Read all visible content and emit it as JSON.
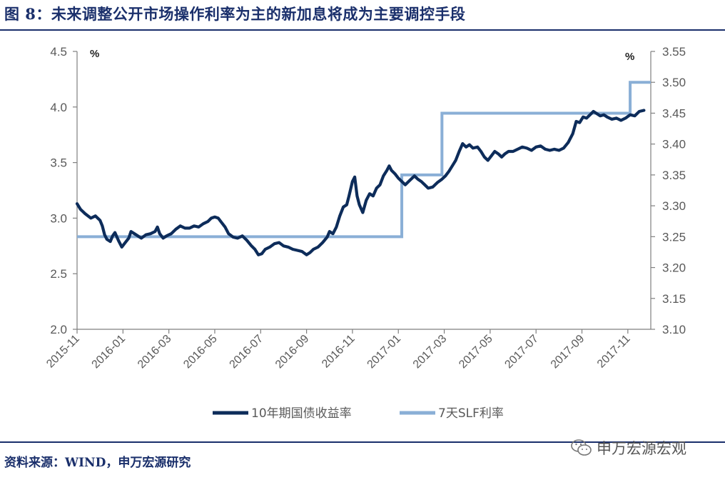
{
  "page": {
    "title": "图 8：未来调整公开市场操作利率为主的新加息将成为主要调控手段",
    "source": "资料来源：WIND，申万宏源研究",
    "watermark": "申万宏源宏观",
    "watermark_icon": "wechat-icon"
  },
  "chart_data": {
    "type": "line",
    "title": "",
    "xlabel": "",
    "left_axis": {
      "unit": "%",
      "ylim": [
        2.0,
        4.5
      ],
      "ticks": [
        "2.0",
        "2.5",
        "3.0",
        "3.5",
        "4.0",
        "4.5"
      ]
    },
    "right_axis": {
      "unit": "%",
      "ylim": [
        3.1,
        3.55
      ],
      "ticks": [
        "3.10",
        "3.15",
        "3.20",
        "3.25",
        "3.30",
        "3.35",
        "3.40",
        "3.45",
        "3.50",
        "3.55"
      ]
    },
    "x_ticks": [
      "2015-11",
      "2016-01",
      "2016-03",
      "2016-05",
      "2016-07",
      "2016-09",
      "2016-11",
      "2017-01",
      "2017-03",
      "2017-05",
      "2017-07",
      "2017-09",
      "2017-11"
    ],
    "x_range_months": [
      0,
      25.0
    ],
    "series": [
      {
        "name": "10年期国债收益率",
        "axis": "left",
        "color": "#0d2c5a",
        "points": [
          [
            0.0,
            3.13
          ],
          [
            0.15,
            3.08
          ],
          [
            0.35,
            3.04
          ],
          [
            0.6,
            3.0
          ],
          [
            0.8,
            3.02
          ],
          [
            1.0,
            2.98
          ],
          [
            1.1,
            2.93
          ],
          [
            1.2,
            2.85
          ],
          [
            1.3,
            2.81
          ],
          [
            1.45,
            2.79
          ],
          [
            1.55,
            2.84
          ],
          [
            1.65,
            2.87
          ],
          [
            1.8,
            2.8
          ],
          [
            1.95,
            2.74
          ],
          [
            2.1,
            2.78
          ],
          [
            2.25,
            2.82
          ],
          [
            2.35,
            2.88
          ],
          [
            2.5,
            2.86
          ],
          [
            2.65,
            2.84
          ],
          [
            2.8,
            2.82
          ],
          [
            3.0,
            2.85
          ],
          [
            3.2,
            2.86
          ],
          [
            3.4,
            2.88
          ],
          [
            3.5,
            2.92
          ],
          [
            3.6,
            2.86
          ],
          [
            3.75,
            2.82
          ],
          [
            3.9,
            2.84
          ],
          [
            4.1,
            2.86
          ],
          [
            4.3,
            2.9
          ],
          [
            4.5,
            2.93
          ],
          [
            4.7,
            2.91
          ],
          [
            4.9,
            2.91
          ],
          [
            5.1,
            2.93
          ],
          [
            5.3,
            2.92
          ],
          [
            5.5,
            2.95
          ],
          [
            5.7,
            2.97
          ],
          [
            5.85,
            3.0
          ],
          [
            6.0,
            3.01
          ],
          [
            6.15,
            3.0
          ],
          [
            6.3,
            2.96
          ],
          [
            6.45,
            2.92
          ],
          [
            6.6,
            2.86
          ],
          [
            6.8,
            2.83
          ],
          [
            7.0,
            2.82
          ],
          [
            7.2,
            2.84
          ],
          [
            7.4,
            2.8
          ],
          [
            7.6,
            2.75
          ],
          [
            7.75,
            2.72
          ],
          [
            7.9,
            2.67
          ],
          [
            8.05,
            2.68
          ],
          [
            8.2,
            2.72
          ],
          [
            8.4,
            2.74
          ],
          [
            8.6,
            2.77
          ],
          [
            8.8,
            2.78
          ],
          [
            9.0,
            2.75
          ],
          [
            9.2,
            2.74
          ],
          [
            9.4,
            2.72
          ],
          [
            9.6,
            2.71
          ],
          [
            9.8,
            2.7
          ],
          [
            10.0,
            2.67
          ],
          [
            10.15,
            2.69
          ],
          [
            10.3,
            2.72
          ],
          [
            10.5,
            2.74
          ],
          [
            10.7,
            2.78
          ],
          [
            10.9,
            2.83
          ],
          [
            11.0,
            2.88
          ],
          [
            11.15,
            2.86
          ],
          [
            11.3,
            2.92
          ],
          [
            11.45,
            3.02
          ],
          [
            11.6,
            3.1
          ],
          [
            11.75,
            3.12
          ],
          [
            11.85,
            3.2
          ],
          [
            12.0,
            3.33
          ],
          [
            12.1,
            3.37
          ],
          [
            12.2,
            3.2
          ],
          [
            12.3,
            3.12
          ],
          [
            12.45,
            3.05
          ],
          [
            12.6,
            3.16
          ],
          [
            12.75,
            3.22
          ],
          [
            12.9,
            3.2
          ],
          [
            13.05,
            3.27
          ],
          [
            13.2,
            3.3
          ],
          [
            13.35,
            3.38
          ],
          [
            13.5,
            3.43
          ],
          [
            13.6,
            3.47
          ],
          [
            13.7,
            3.43
          ],
          [
            13.85,
            3.4
          ],
          [
            14.0,
            3.36
          ],
          [
            14.15,
            3.33
          ],
          [
            14.3,
            3.3
          ],
          [
            14.5,
            3.34
          ],
          [
            14.7,
            3.38
          ],
          [
            14.85,
            3.35
          ],
          [
            15.0,
            3.33
          ],
          [
            15.15,
            3.3
          ],
          [
            15.3,
            3.27
          ],
          [
            15.5,
            3.28
          ],
          [
            15.7,
            3.32
          ],
          [
            15.9,
            3.35
          ],
          [
            16.05,
            3.38
          ],
          [
            16.2,
            3.42
          ],
          [
            16.35,
            3.47
          ],
          [
            16.5,
            3.52
          ],
          [
            16.65,
            3.6
          ],
          [
            16.8,
            3.67
          ],
          [
            16.95,
            3.64
          ],
          [
            17.1,
            3.66
          ],
          [
            17.25,
            3.63
          ],
          [
            17.45,
            3.64
          ],
          [
            17.6,
            3.6
          ],
          [
            17.75,
            3.55
          ],
          [
            17.9,
            3.52
          ],
          [
            18.05,
            3.56
          ],
          [
            18.2,
            3.6
          ],
          [
            18.35,
            3.58
          ],
          [
            18.5,
            3.55
          ],
          [
            18.65,
            3.58
          ],
          [
            18.8,
            3.6
          ],
          [
            19.0,
            3.6
          ],
          [
            19.2,
            3.62
          ],
          [
            19.4,
            3.64
          ],
          [
            19.6,
            3.63
          ],
          [
            19.8,
            3.61
          ],
          [
            20.0,
            3.64
          ],
          [
            20.2,
            3.65
          ],
          [
            20.4,
            3.62
          ],
          [
            20.6,
            3.61
          ],
          [
            20.8,
            3.62
          ],
          [
            21.0,
            3.61
          ],
          [
            21.2,
            3.63
          ],
          [
            21.4,
            3.68
          ],
          [
            21.6,
            3.76
          ],
          [
            21.75,
            3.87
          ],
          [
            21.9,
            3.86
          ],
          [
            22.05,
            3.91
          ],
          [
            22.2,
            3.9
          ],
          [
            22.35,
            3.93
          ],
          [
            22.5,
            3.96
          ],
          [
            22.65,
            3.94
          ],
          [
            22.8,
            3.92
          ],
          [
            22.95,
            3.93
          ],
          [
            23.1,
            3.91
          ],
          [
            23.3,
            3.89
          ],
          [
            23.5,
            3.9
          ],
          [
            23.7,
            3.88
          ],
          [
            23.9,
            3.9
          ],
          [
            24.1,
            3.93
          ],
          [
            24.3,
            3.92
          ],
          [
            24.5,
            3.96
          ],
          [
            24.7,
            3.97
          ]
        ]
      },
      {
        "name": "7天SLF利率",
        "axis": "right",
        "color": "#8aafd6",
        "steps": [
          [
            0.0,
            3.25
          ],
          [
            14.15,
            3.35
          ],
          [
            15.9,
            3.45
          ],
          [
            24.1,
            3.5
          ],
          [
            25.0,
            3.5
          ]
        ]
      }
    ],
    "legend_position": "bottom-center"
  }
}
